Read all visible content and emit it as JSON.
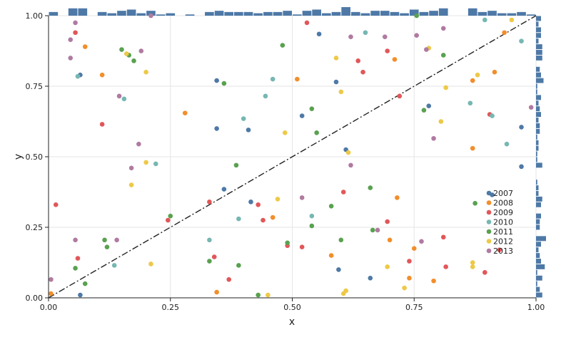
{
  "chart_data": {
    "type": "scatter",
    "title": "",
    "xlabel": "x",
    "ylabel": "y",
    "xlim": [
      0,
      1
    ],
    "ylim": [
      0,
      1
    ],
    "grid": true,
    "legend_position": "right-center",
    "x_ticks": [
      "0.00",
      "0.25",
      "0.50",
      "0.75",
      "1.00"
    ],
    "y_ticks": [
      "0.00",
      "0.25",
      "0.50",
      "0.75",
      "1.00"
    ],
    "reference_line": {
      "style": "dash-dot",
      "from": [
        0,
        0
      ],
      "to": [
        1,
        1
      ],
      "color": "#222222"
    },
    "marginal_histograms": {
      "color": "#4e79a7",
      "top": "x distribution",
      "right": "y distribution"
    },
    "series": [
      {
        "name": "2007",
        "color": "#4e79a7",
        "points": [
          [
            0.065,
            0.79
          ],
          [
            0.345,
            0.77
          ],
          [
            0.345,
            0.6
          ],
          [
            0.41,
            0.595
          ],
          [
            0.36,
            0.385
          ],
          [
            0.415,
            0.34
          ],
          [
            0.52,
            0.645
          ],
          [
            0.555,
            0.935
          ],
          [
            0.59,
            0.765
          ],
          [
            0.61,
            0.525
          ],
          [
            0.595,
            0.1
          ],
          [
            0.66,
            0.07
          ],
          [
            0.78,
            0.68
          ],
          [
            0.91,
            0.365
          ],
          [
            0.97,
            0.605
          ],
          [
            0.97,
            0.465
          ],
          [
            0.065,
            0.01
          ]
        ]
      },
      {
        "name": "2008",
        "color": "#f28e2b",
        "points": [
          [
            0.005,
            0.015
          ],
          [
            0.075,
            0.89
          ],
          [
            0.11,
            0.79
          ],
          [
            0.28,
            0.655
          ],
          [
            0.345,
            0.02
          ],
          [
            0.46,
            0.285
          ],
          [
            0.51,
            0.775
          ],
          [
            0.58,
            0.15
          ],
          [
            0.7,
            0.205
          ],
          [
            0.71,
            0.845
          ],
          [
            0.715,
            0.355
          ],
          [
            0.74,
            0.07
          ],
          [
            0.75,
            0.175
          ],
          [
            0.79,
            0.06
          ],
          [
            0.87,
            0.77
          ],
          [
            0.87,
            0.53
          ],
          [
            0.915,
            0.8
          ],
          [
            0.935,
            0.94
          ]
        ]
      },
      {
        "name": "2009",
        "color": "#e15759",
        "points": [
          [
            0.015,
            0.33
          ],
          [
            0.055,
            0.94
          ],
          [
            0.06,
            0.14
          ],
          [
            0.11,
            0.615
          ],
          [
            0.245,
            0.275
          ],
          [
            0.33,
            0.34
          ],
          [
            0.34,
            0.145
          ],
          [
            0.37,
            0.065
          ],
          [
            0.43,
            0.33
          ],
          [
            0.44,
            0.275
          ],
          [
            0.49,
            0.185
          ],
          [
            0.52,
            0.18
          ],
          [
            0.53,
            0.975
          ],
          [
            0.605,
            0.375
          ],
          [
            0.635,
            0.84
          ],
          [
            0.645,
            0.8
          ],
          [
            0.695,
            0.875
          ],
          [
            0.695,
            0.27
          ],
          [
            0.72,
            0.715
          ],
          [
            0.74,
            0.13
          ],
          [
            0.81,
            0.215
          ],
          [
            0.815,
            0.11
          ],
          [
            0.895,
            0.09
          ],
          [
            0.905,
            0.65
          ],
          [
            0.925,
            0.17
          ]
        ]
      },
      {
        "name": "2010",
        "color": "#76b7b2",
        "points": [
          [
            0.06,
            0.785
          ],
          [
            0.155,
            0.705
          ],
          [
            0.135,
            0.115
          ],
          [
            0.22,
            0.475
          ],
          [
            0.33,
            0.205
          ],
          [
            0.39,
            0.28
          ],
          [
            0.4,
            0.635
          ],
          [
            0.445,
            0.715
          ],
          [
            0.46,
            0.775
          ],
          [
            0.54,
            0.29
          ],
          [
            0.65,
            0.94
          ],
          [
            0.865,
            0.69
          ],
          [
            0.895,
            0.985
          ],
          [
            0.91,
            0.645
          ],
          [
            0.94,
            0.545
          ],
          [
            0.97,
            0.91
          ]
        ]
      },
      {
        "name": "2011",
        "color": "#59a14f",
        "points": [
          [
            0.055,
            0.105
          ],
          [
            0.075,
            0.05
          ],
          [
            0.115,
            0.205
          ],
          [
            0.12,
            0.18
          ],
          [
            0.15,
            0.88
          ],
          [
            0.165,
            0.86
          ],
          [
            0.175,
            0.84
          ],
          [
            0.25,
            0.29
          ],
          [
            0.33,
            0.13
          ],
          [
            0.36,
            0.76
          ],
          [
            0.385,
            0.47
          ],
          [
            0.39,
            0.115
          ],
          [
            0.43,
            0.01
          ],
          [
            0.48,
            0.895
          ],
          [
            0.49,
            0.195
          ],
          [
            0.54,
            0.255
          ],
          [
            0.54,
            0.67
          ],
          [
            0.55,
            0.585
          ],
          [
            0.58,
            0.325
          ],
          [
            0.6,
            0.205
          ],
          [
            0.66,
            0.39
          ],
          [
            0.665,
            0.24
          ],
          [
            0.755,
            1.0
          ],
          [
            0.77,
            0.665
          ],
          [
            0.81,
            0.86
          ],
          [
            0.875,
            0.335
          ]
        ]
      },
      {
        "name": "2012",
        "color": "#edc948",
        "points": [
          [
            0.16,
            0.865
          ],
          [
            0.17,
            0.4
          ],
          [
            0.2,
            0.8
          ],
          [
            0.2,
            0.48
          ],
          [
            0.21,
            0.12
          ],
          [
            0.45,
            0.01
          ],
          [
            0.47,
            0.35
          ],
          [
            0.485,
            0.585
          ],
          [
            0.59,
            0.85
          ],
          [
            0.6,
            0.73
          ],
          [
            0.605,
            0.015
          ],
          [
            0.61,
            0.025
          ],
          [
            0.615,
            0.515
          ],
          [
            0.695,
            0.11
          ],
          [
            0.73,
            0.035
          ],
          [
            0.78,
            0.885
          ],
          [
            0.805,
            0.625
          ],
          [
            0.815,
            0.745
          ],
          [
            0.87,
            0.11
          ],
          [
            0.87,
            0.125
          ],
          [
            0.88,
            0.79
          ],
          [
            0.95,
            0.985
          ]
        ]
      },
      {
        "name": "2013",
        "color": "#b07aa1",
        "points": [
          [
            0.005,
            0.065
          ],
          [
            0.045,
            0.85
          ],
          [
            0.045,
            0.915
          ],
          [
            0.055,
            0.975
          ],
          [
            0.055,
            0.205
          ],
          [
            0.14,
            0.205
          ],
          [
            0.145,
            0.715
          ],
          [
            0.17,
            0.46
          ],
          [
            0.185,
            0.545
          ],
          [
            0.19,
            0.875
          ],
          [
            0.21,
            1.0
          ],
          [
            0.52,
            0.355
          ],
          [
            0.62,
            0.925
          ],
          [
            0.62,
            0.47
          ],
          [
            0.675,
            0.24
          ],
          [
            0.69,
            0.925
          ],
          [
            0.755,
            0.93
          ],
          [
            0.765,
            0.2
          ],
          [
            0.775,
            0.88
          ],
          [
            0.79,
            0.565
          ],
          [
            0.81,
            0.955
          ],
          [
            0.99,
            0.675
          ]
        ]
      }
    ]
  }
}
